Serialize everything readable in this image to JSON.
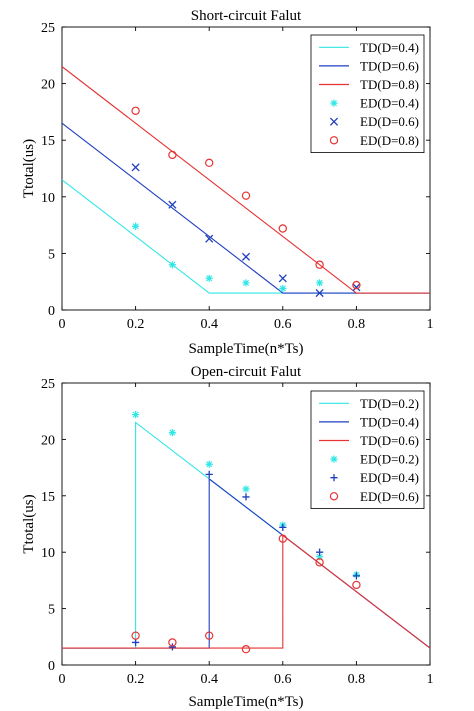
{
  "chart_data": [
    {
      "type": "line",
      "title": "Short-circuit Falut",
      "xlabel": "SampleTime(n*Ts)",
      "ylabel": "Ttotal(us)",
      "xlim": [
        0,
        1
      ],
      "ylim": [
        0,
        25
      ],
      "xticks": [
        "0",
        "0.2",
        "0.4",
        "0.6",
        "0.8",
        "1"
      ],
      "yticks": [
        "0",
        "5",
        "10",
        "15",
        "20",
        "25"
      ],
      "grid": false,
      "legend_position": "top-right",
      "series": [
        {
          "name": "TD(D=0.4)",
          "kind": "line",
          "color": "#33e6e6",
          "x": [
            0,
            0.4,
            1
          ],
          "y": [
            11.5,
            1.5,
            1.5
          ]
        },
        {
          "name": "TD(D=0.6)",
          "kind": "line",
          "color": "#1f3fbf",
          "x": [
            0,
            0.6,
            1
          ],
          "y": [
            16.5,
            1.5,
            1.5
          ]
        },
        {
          "name": "TD(D=0.8)",
          "kind": "line",
          "color": "#e63333",
          "x": [
            0,
            0.8,
            1
          ],
          "y": [
            21.5,
            1.5,
            1.5
          ]
        },
        {
          "name": "ED(D=0.4)",
          "kind": "scatter",
          "marker": "star",
          "color": "#33e6e6",
          "x": [
            0.2,
            0.3,
            0.4,
            0.5,
            0.6,
            0.7
          ],
          "y": [
            7.4,
            4.0,
            2.8,
            2.4,
            1.9,
            2.4
          ]
        },
        {
          "name": "ED(D=0.6)",
          "kind": "scatter",
          "marker": "x",
          "color": "#1f3fbf",
          "x": [
            0.2,
            0.3,
            0.4,
            0.5,
            0.6,
            0.7,
            0.8
          ],
          "y": [
            12.6,
            9.3,
            6.3,
            4.7,
            2.8,
            1.5,
            2.0
          ]
        },
        {
          "name": "ED(D=0.8)",
          "kind": "scatter",
          "marker": "circle",
          "color": "#e63333",
          "x": [
            0.2,
            0.3,
            0.4,
            0.5,
            0.6,
            0.7,
            0.8
          ],
          "y": [
            17.6,
            13.7,
            13.0,
            10.1,
            7.2,
            4.0,
            2.2
          ]
        }
      ]
    },
    {
      "type": "line",
      "title": "Open-circuit Falut",
      "xlabel": "SampleTime(n*Ts)",
      "ylabel": "Ttotal(us)",
      "xlim": [
        0,
        1
      ],
      "ylim": [
        0,
        25
      ],
      "xticks": [
        "0",
        "0.2",
        "0.4",
        "0.6",
        "0.8",
        "1"
      ],
      "yticks": [
        "0",
        "5",
        "10",
        "15",
        "20",
        "25"
      ],
      "grid": false,
      "legend_position": "top-right",
      "series": [
        {
          "name": "TD(D=0.2)",
          "kind": "line",
          "color": "#33e6e6",
          "x": [
            0,
            0.2,
            0.2,
            1
          ],
          "y": [
            1.5,
            1.5,
            21.5,
            1.5
          ]
        },
        {
          "name": "TD(D=0.4)",
          "kind": "line",
          "color": "#1f3fbf",
          "x": [
            0,
            0.4,
            0.4,
            1
          ],
          "y": [
            1.5,
            1.5,
            16.5,
            1.5
          ]
        },
        {
          "name": "TD(D=0.6)",
          "kind": "line",
          "color": "#e63333",
          "x": [
            0,
            0.6,
            0.6,
            1
          ],
          "y": [
            1.5,
            1.5,
            11.5,
            1.5
          ]
        },
        {
          "name": "ED(D=0.2)",
          "kind": "scatter",
          "marker": "star",
          "color": "#33e6e6",
          "x": [
            0.2,
            0.3,
            0.4,
            0.5,
            0.6,
            0.7,
            0.8
          ],
          "y": [
            22.2,
            20.6,
            17.8,
            15.6,
            12.4,
            9.6,
            8.0
          ]
        },
        {
          "name": "ED(D=0.4)",
          "kind": "scatter",
          "marker": "plus",
          "color": "#1f3fbf",
          "x": [
            0.2,
            0.3,
            0.4,
            0.5,
            0.6,
            0.7,
            0.8
          ],
          "y": [
            2.0,
            1.6,
            16.9,
            14.9,
            12.2,
            10.0,
            7.9
          ]
        },
        {
          "name": "ED(D=0.6)",
          "kind": "scatter",
          "marker": "circle",
          "color": "#e63333",
          "x": [
            0.2,
            0.3,
            0.4,
            0.5,
            0.6,
            0.7,
            0.8
          ],
          "y": [
            2.6,
            2.0,
            2.6,
            1.4,
            11.2,
            9.1,
            7.1
          ]
        }
      ]
    }
  ]
}
